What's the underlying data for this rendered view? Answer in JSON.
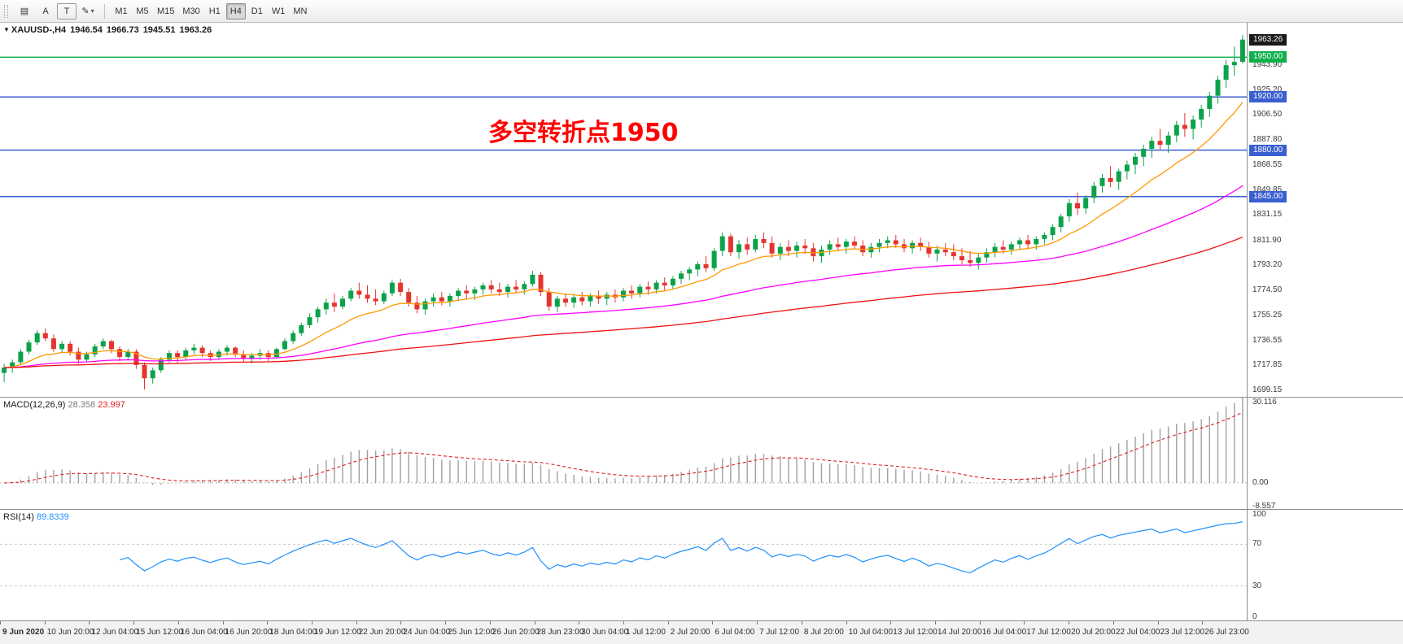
{
  "toolbar": {
    "tools": [
      {
        "id": "chart-window",
        "glyph": "▤"
      },
      {
        "id": "text-label",
        "glyph": "A"
      },
      {
        "id": "text-tool",
        "glyph": "T",
        "boxed": true
      },
      {
        "id": "line-styles-dropdown",
        "glyph": "✎",
        "caret": true
      }
    ],
    "timeframes": [
      "M1",
      "M5",
      "M15",
      "M30",
      "H1",
      "H4",
      "D1",
      "W1",
      "MN"
    ],
    "selected_timeframe": "H4"
  },
  "chart_header": {
    "collapse_icon": "▼",
    "symbol_period": "XAUUSD-,H4",
    "open": "1946.54",
    "high": "1966.73",
    "low": "1945.51",
    "close": "1963.26"
  },
  "annotation": {
    "text": "多空转折点1950",
    "color": "#ff0000"
  },
  "colors": {
    "bull": "#0ca24a",
    "bear": "#e5342e",
    "last_badge": "#1a1a1a",
    "hline_green": "#0db04b",
    "hline_blue": "#3a5fd0"
  },
  "indicators": {
    "macd": {
      "label": "MACD(12,26,9)",
      "value1": "28.358",
      "value2": "23.997",
      "fast": 12,
      "slow": 26,
      "signal": 9,
      "axis": [
        "30.116",
        "0.00",
        "-8.557"
      ],
      "range": [
        -9.5,
        31.0
      ],
      "histogram_color": "#a0a0a0",
      "signal_color": "#e02020"
    },
    "rsi": {
      "label": "RSI(14)",
      "value": "89.8339",
      "period": 14,
      "levels": [
        70,
        30
      ],
      "axis": [
        "100",
        "70",
        "30",
        "0"
      ],
      "line_color": "#1e90ff"
    }
  },
  "chart_data": {
    "type": "candlestick",
    "symbol": "XAUUSD-",
    "timeframe": "H4",
    "ylim": [
      1694,
      1976
    ],
    "last_price": 1963.26,
    "last_price_label": "1963.26",
    "price_axis_labels": [
      "1943.90",
      "1925.20",
      "1906.50",
      "1887.80",
      "1868.55",
      "1849.85",
      "1831.15",
      "1811.90",
      "1793.20",
      "1774.50",
      "1755.25",
      "1736.55",
      "1717.85",
      "1699.15"
    ],
    "hlines": [
      {
        "price": 1950.0,
        "label": "1950.00",
        "color": "#0db04b"
      },
      {
        "price": 1920.0,
        "label": "1920.00",
        "color": "#3a5fd0"
      },
      {
        "price": 1880.0,
        "label": "1880.00",
        "color": "#3a5fd0"
      },
      {
        "price": 1845.0,
        "label": "1845.00",
        "color": "#3a5fd0"
      }
    ],
    "moving_averages": [
      {
        "period": 13,
        "color": "#ff9900"
      },
      {
        "period": 55,
        "color": "#ff00ff"
      },
      {
        "period": 120,
        "color": "#ee1111"
      }
    ],
    "time_labels": [
      "9 Jun 2020",
      "10 Jun 20:00",
      "12 Jun 04:00",
      "15 Jun 12:00",
      "16 Jun 04:00",
      "16 Jun 20:00",
      "18 Jun 04:00",
      "19 Jun 12:00",
      "22 Jun 20:00",
      "24 Jun 04:00",
      "25 Jun 12:00",
      "26 Jun 20:00",
      "28 Jun 23:00",
      "30 Jun 04:00",
      "1 Jul 12:00",
      "2 Jul 20:00",
      "6 Jul 04:00",
      "7 Jul 12:00",
      "8 Jul 20:00",
      "10 Jul 04:00",
      "13 Jul 12:00",
      "14 Jul 20:00",
      "16 Jul 04:00",
      "17 Jul 12:00",
      "20 Jul 20:00",
      "22 Jul 04:00",
      "23 Jul 12:00",
      "26 Jul 23:00"
    ],
    "ohlc": [
      [
        1712,
        1719,
        1705,
        1716
      ],
      [
        1716,
        1722,
        1712,
        1720
      ],
      [
        1720,
        1730,
        1718,
        1728
      ],
      [
        1728,
        1737,
        1726,
        1735
      ],
      [
        1735,
        1744,
        1733,
        1742
      ],
      [
        1742,
        1745.5,
        1736,
        1738
      ],
      [
        1738,
        1741,
        1728,
        1730
      ],
      [
        1730,
        1736,
        1727,
        1734
      ],
      [
        1734,
        1736,
        1725,
        1728
      ],
      [
        1728,
        1731,
        1719,
        1722
      ],
      [
        1722,
        1728,
        1720,
        1726
      ],
      [
        1726,
        1734,
        1724,
        1732
      ],
      [
        1732,
        1738,
        1730,
        1736
      ],
      [
        1736,
        1737,
        1727,
        1730
      ],
      [
        1730,
        1732,
        1721,
        1724
      ],
      [
        1724,
        1730,
        1722,
        1728
      ],
      [
        1728,
        1730,
        1715,
        1718
      ],
      [
        1718,
        1720,
        1699.5,
        1708
      ],
      [
        1708,
        1716,
        1704,
        1714
      ],
      [
        1714,
        1724,
        1712,
        1722
      ],
      [
        1722,
        1729,
        1720,
        1727
      ],
      [
        1727,
        1729,
        1719,
        1724
      ],
      [
        1724,
        1731,
        1722,
        1729
      ],
      [
        1729,
        1734,
        1726,
        1731
      ],
      [
        1731,
        1733,
        1724,
        1727
      ],
      [
        1727,
        1729,
        1721,
        1724
      ],
      [
        1724,
        1730,
        1722,
        1728
      ],
      [
        1728,
        1733,
        1725,
        1731
      ],
      [
        1731,
        1732,
        1724,
        1726
      ],
      [
        1726,
        1729,
        1720,
        1723
      ],
      [
        1723,
        1727,
        1719,
        1725
      ],
      [
        1725,
        1730,
        1722,
        1727
      ],
      [
        1727,
        1729,
        1721,
        1724
      ],
      [
        1724,
        1731,
        1723,
        1730
      ],
      [
        1730,
        1738,
        1729,
        1736
      ],
      [
        1736,
        1744,
        1734,
        1742
      ],
      [
        1742,
        1750,
        1740,
        1748
      ],
      [
        1748,
        1757,
        1746,
        1754
      ],
      [
        1754,
        1762,
        1750,
        1760
      ],
      [
        1760,
        1768,
        1756,
        1765
      ],
      [
        1765,
        1772,
        1758,
        1762
      ],
      [
        1762,
        1770,
        1760,
        1768
      ],
      [
        1768,
        1776,
        1766,
        1774
      ],
      [
        1774,
        1780,
        1768,
        1771
      ],
      [
        1771,
        1778,
        1765,
        1768
      ],
      [
        1768,
        1775,
        1763,
        1766
      ],
      [
        1766,
        1774,
        1764,
        1772
      ],
      [
        1772,
        1782,
        1770,
        1780
      ],
      [
        1780,
        1783,
        1770,
        1773
      ],
      [
        1773,
        1776,
        1762,
        1765
      ],
      [
        1765,
        1770,
        1757,
        1760
      ],
      [
        1760,
        1768,
        1756,
        1766
      ],
      [
        1766,
        1772,
        1762,
        1769
      ],
      [
        1769,
        1773,
        1763,
        1766
      ],
      [
        1766,
        1772,
        1762,
        1770
      ],
      [
        1770,
        1776,
        1766,
        1774
      ],
      [
        1774,
        1778,
        1768,
        1772
      ],
      [
        1772,
        1777,
        1767,
        1775
      ],
      [
        1775,
        1780,
        1771,
        1778
      ],
      [
        1778,
        1782,
        1772,
        1775
      ],
      [
        1775,
        1780,
        1770,
        1773
      ],
      [
        1773,
        1779,
        1769,
        1777
      ],
      [
        1777,
        1782,
        1772,
        1775
      ],
      [
        1775,
        1781,
        1771,
        1779
      ],
      [
        1779,
        1789,
        1777,
        1786
      ],
      [
        1786,
        1788,
        1770,
        1773
      ],
      [
        1773,
        1776,
        1759,
        1762
      ],
      [
        1762,
        1770,
        1758,
        1768
      ],
      [
        1768,
        1772,
        1762,
        1765
      ],
      [
        1765,
        1771,
        1761,
        1769
      ],
      [
        1769,
        1773,
        1763,
        1766
      ],
      [
        1766,
        1772,
        1762,
        1770
      ],
      [
        1770,
        1774,
        1764,
        1768
      ],
      [
        1768,
        1773,
        1763,
        1771
      ],
      [
        1771,
        1775,
        1765,
        1769
      ],
      [
        1769,
        1776,
        1766,
        1774
      ],
      [
        1774,
        1778,
        1768,
        1772
      ],
      [
        1772,
        1779,
        1769,
        1777
      ],
      [
        1777,
        1781,
        1771,
        1775
      ],
      [
        1775,
        1782,
        1772,
        1780
      ],
      [
        1780,
        1784,
        1774,
        1778
      ],
      [
        1778,
        1785,
        1775,
        1783
      ],
      [
        1783,
        1789,
        1779,
        1787
      ],
      [
        1787,
        1792,
        1782,
        1790
      ],
      [
        1790,
        1796,
        1785,
        1794
      ],
      [
        1794,
        1800,
        1788,
        1791
      ],
      [
        1791,
        1806,
        1789,
        1804
      ],
      [
        1804,
        1818,
        1800,
        1815
      ],
      [
        1815,
        1817,
        1800,
        1803
      ],
      [
        1803,
        1812,
        1798,
        1809
      ],
      [
        1809,
        1814,
        1801,
        1805
      ],
      [
        1805,
        1816,
        1803,
        1813
      ],
      [
        1813,
        1818,
        1806,
        1810
      ],
      [
        1810,
        1815,
        1799,
        1802
      ],
      [
        1802,
        1810,
        1797,
        1807
      ],
      [
        1807,
        1812,
        1800,
        1804
      ],
      [
        1804,
        1811,
        1799,
        1808
      ],
      [
        1808,
        1813,
        1802,
        1806
      ],
      [
        1806,
        1810,
        1796,
        1800
      ],
      [
        1800,
        1808,
        1795,
        1805
      ],
      [
        1805,
        1812,
        1801,
        1809
      ],
      [
        1809,
        1814,
        1804,
        1807
      ],
      [
        1807,
        1813,
        1802,
        1811
      ],
      [
        1811,
        1815,
        1805,
        1808
      ],
      [
        1808,
        1812,
        1800,
        1803
      ],
      [
        1803,
        1810,
        1799,
        1807
      ],
      [
        1807,
        1813,
        1803,
        1810
      ],
      [
        1810,
        1815,
        1806,
        1812
      ],
      [
        1812,
        1816,
        1806,
        1809
      ],
      [
        1809,
        1813,
        1803,
        1806
      ],
      [
        1806,
        1812,
        1802,
        1810
      ],
      [
        1810,
        1814,
        1804,
        1807
      ],
      [
        1807,
        1811,
        1799,
        1802
      ],
      [
        1802,
        1808,
        1796,
        1805
      ],
      [
        1805,
        1810,
        1800,
        1803
      ],
      [
        1803,
        1809,
        1797,
        1800
      ],
      [
        1800,
        1806,
        1794,
        1797
      ],
      [
        1797,
        1804,
        1792,
        1795
      ],
      [
        1795,
        1802,
        1790,
        1799
      ],
      [
        1799,
        1806,
        1795,
        1803
      ],
      [
        1803,
        1810,
        1799,
        1807
      ],
      [
        1807,
        1812,
        1802,
        1805
      ],
      [
        1805,
        1811,
        1801,
        1809
      ],
      [
        1809,
        1814,
        1805,
        1812
      ],
      [
        1812,
        1816,
        1806,
        1809
      ],
      [
        1809,
        1815,
        1805,
        1813
      ],
      [
        1813,
        1818,
        1809,
        1816
      ],
      [
        1816,
        1824,
        1812,
        1822
      ],
      [
        1822,
        1832,
        1818,
        1830
      ],
      [
        1830,
        1843,
        1826,
        1840
      ],
      [
        1840,
        1848,
        1831,
        1836
      ],
      [
        1836,
        1846,
        1832,
        1844
      ],
      [
        1844,
        1856,
        1840,
        1853
      ],
      [
        1853,
        1862,
        1848,
        1859
      ],
      [
        1859,
        1868,
        1852,
        1856
      ],
      [
        1856,
        1866,
        1850,
        1864
      ],
      [
        1864,
        1872,
        1858,
        1869
      ],
      [
        1869,
        1878,
        1862,
        1875
      ],
      [
        1875,
        1884,
        1868,
        1881
      ],
      [
        1881,
        1890,
        1874,
        1887
      ],
      [
        1887,
        1896,
        1880,
        1884
      ],
      [
        1884,
        1894,
        1878,
        1891
      ],
      [
        1891,
        1902,
        1886,
        1899
      ],
      [
        1899,
        1908,
        1890,
        1896
      ],
      [
        1896,
        1906,
        1888,
        1903
      ],
      [
        1903,
        1914,
        1897,
        1911
      ],
      [
        1911,
        1924,
        1905,
        1921
      ],
      [
        1921,
        1936,
        1915,
        1933
      ],
      [
        1933,
        1948,
        1927,
        1944
      ],
      [
        1944,
        1958,
        1936,
        1946.5
      ],
      [
        1946.5,
        1966.7,
        1945.5,
        1963.3
      ]
    ]
  }
}
